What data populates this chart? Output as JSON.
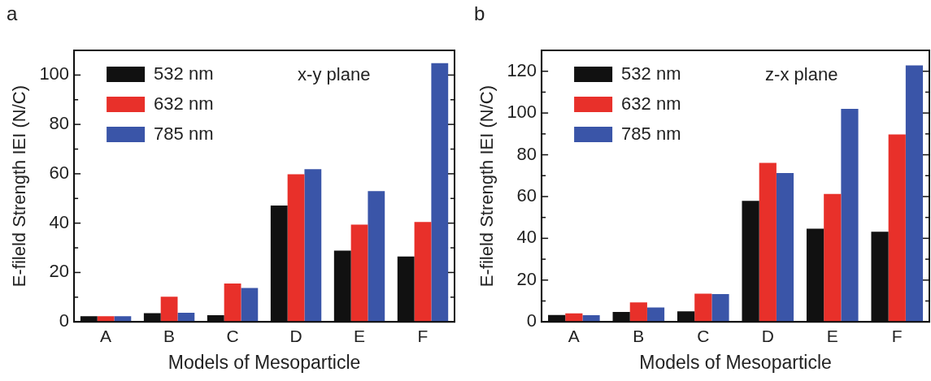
{
  "chart_data": [
    {
      "type": "bar",
      "xlabel": "Models of Mesoparticle",
      "ylabel": "E-fileld Strength IEI (N/C)",
      "categories": [
        "A",
        "B",
        "C",
        "D",
        "E",
        "F"
      ],
      "series": [
        {
          "name": "532 nm",
          "color": "#111111",
          "values": [
            2.3,
            3.5,
            2.7,
            47.1,
            28.9,
            26.5
          ]
        },
        {
          "name": "632 nm",
          "color": "#e8302a",
          "values": [
            2.3,
            10.2,
            15.5,
            59.8,
            39.4,
            40.5
          ]
        },
        {
          "name": "785 nm",
          "color": "#3a55a8",
          "values": [
            2.3,
            3.7,
            13.7,
            61.9,
            53.0,
            104.8
          ]
        }
      ],
      "ylim": [
        0,
        110
      ],
      "yticks": [
        0,
        {
          "value": 10,
          "label": null
        },
        20,
        {
          "value": 30,
          "label": null
        },
        40,
        {
          "value": 50,
          "label": null
        },
        60,
        {
          "value": 70,
          "label": null
        },
        80,
        {
          "value": 90,
          "label": null
        },
        100,
        {
          "value": 110,
          "label": null
        }
      ],
      "legend": "top left",
      "grid": false,
      "annotations": [
        "a",
        "x-y plane"
      ]
    },
    {
      "type": "bar",
      "xlabel": "Models of Mesoparticle",
      "ylabel": "E-fileld Strength IEI (N/C)",
      "categories": [
        "A",
        "B",
        "C",
        "D",
        "E",
        "F"
      ],
      "series": [
        {
          "name": "532 nm",
          "color": "#111111",
          "values": [
            3.3,
            4.7,
            5.0,
            57.9,
            44.6,
            43.2
          ]
        },
        {
          "name": "632 nm",
          "color": "#e8302a",
          "values": [
            4.1,
            9.3,
            13.5,
            76.1,
            61.2,
            89.7
          ]
        },
        {
          "name": "785 nm",
          "color": "#3a55a8",
          "values": [
            3.2,
            6.9,
            13.3,
            71.3,
            102.0,
            122.8
          ]
        }
      ],
      "ylim": [
        0,
        130
      ],
      "yticks": [
        0,
        {
          "value": 10,
          "label": null
        },
        20,
        {
          "value": 30,
          "label": null
        },
        40,
        {
          "value": 50,
          "label": null
        },
        60,
        {
          "value": 70,
          "label": null
        },
        80,
        {
          "value": 90,
          "label": null
        },
        100,
        {
          "value": 110,
          "label": null
        },
        120,
        {
          "value": 130,
          "label": null
        }
      ],
      "legend": "top left",
      "grid": false,
      "annotations": [
        "b",
        "z-x plane"
      ]
    }
  ]
}
